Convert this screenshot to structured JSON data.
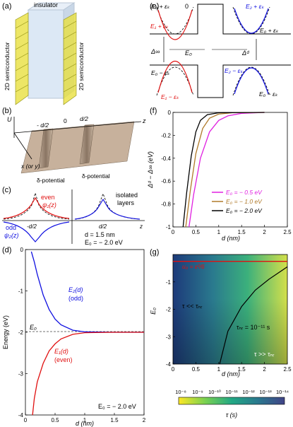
{
  "panels": {
    "a": {
      "label": "(a)",
      "insulator": "insulator",
      "semi_left": "2D semiconductor",
      "semi_right": "2D semiconductor"
    },
    "b": {
      "label": "(b)",
      "u_axis": "U",
      "z_axis": "z",
      "xy_axis": "x (or y)",
      "tick_neg": "- d/2",
      "tick_zero": "0",
      "tick_pos": "d/2",
      "delta1": "δ-potential",
      "delta2": "δ-potential"
    },
    "c": {
      "label": "(c)",
      "even": "even",
      "psi1": "ψ₁(z)",
      "odd": "odd",
      "psi2": "ψ₂(z)",
      "isolated": "isolated",
      "layers": "layers",
      "tick_neg": "-d/2",
      "tick_pos": "d/2",
      "z": "z",
      "param_d": "d = 1.5 nm",
      "param_E": "E₀ = − 2.0 eV"
    },
    "d": {
      "label": "(d)",
      "ylabel": "Energy (eV)",
      "xlabel": "d (nm)",
      "E2": "E₂(d)",
      "E2b": "(odd)",
      "E1": "E₁(d)",
      "E1b": "(even)",
      "E0": "E₀",
      "param": "E₀ = − 2.0 eV",
      "xticks": [
        "0",
        "0.5",
        "1",
        "1.5",
        "2"
      ],
      "yticks": [
        "0",
        "-1",
        "-2",
        "-3",
        "-4"
      ]
    },
    "e": {
      "label": "(e)",
      "E0_plus_ek_l": "E₀ + εₖ",
      "zero": "0",
      "E1_plus": "E₁ + εₖ",
      "E2_plus": "E₂ + εₖ",
      "E0_plus_ek_r": "E₀ + εₖ",
      "delta_inf": "Δ∞",
      "E0": "E₀",
      "delta_d": "Δᵈ",
      "E0_minus_ek_l": "E₀ − εₖ",
      "E1_minus": "E₁ − εₖ",
      "E2_minus": "E₂ − εₖ",
      "E0_minus_ek_r": "E₀ − εₖ"
    },
    "f": {
      "label": "(f)",
      "ylabel": "Δᵈ − Δ∞ (eV)",
      "xlabel": "d (nm)",
      "xticks": [
        "0",
        "0.5",
        "1",
        "1.5",
        "2",
        "2.5"
      ],
      "yticks": [
        "0",
        "-0.2",
        "-0.4",
        "-0.6",
        "-0.8",
        "-1"
      ],
      "legend": [
        {
          "label": "E₀ = − 0.5 eV",
          "color": "#e020e0"
        },
        {
          "label": "E₀ = − 1.0 eV",
          "color": "#b07a2a"
        },
        {
          "label": "E₀ = − 2.0 eV",
          "color": "#000000"
        }
      ]
    },
    "g": {
      "label": "(g)",
      "ylabel": "E₀",
      "xlabel": "d (nm)",
      "xticks": [
        "0",
        "0.5",
        "1",
        "1.5",
        "2",
        "2.5"
      ],
      "yticks": [
        "-1",
        "-2",
        "-3",
        "-4"
      ],
      "redlabel": "u₀ = ε²/6",
      "ann1": "τ << τₙᵣ",
      "ann2": "τₙᵣ = 10⁻¹¹ s",
      "ann3": "τ >> τₙᵣ",
      "cbar_ticks": [
        "10⁻⁸",
        "10⁻⁹",
        "10⁻¹⁰",
        "10⁻¹¹",
        "10⁻¹²",
        "10⁻¹³",
        "10⁻¹⁴"
      ],
      "cbar_label": "τ (s)"
    }
  },
  "chart_data": [
    {
      "type": "line",
      "title": "",
      "xlabel": "d (nm)",
      "ylabel": "Energy (eV)",
      "xlim": [
        0,
        2
      ],
      "ylim": [
        -4,
        0
      ],
      "series": [
        {
          "name": "E₂(d) (odd)",
          "color": "#1010e0",
          "x": [
            0.1,
            0.15,
            0.2,
            0.3,
            0.4,
            0.5,
            0.6,
            0.8,
            1.0,
            1.5,
            2.0
          ],
          "y": [
            -0.05,
            -0.3,
            -0.6,
            -1.1,
            -1.45,
            -1.68,
            -1.82,
            -1.95,
            -1.99,
            -2.0,
            -2.0
          ]
        },
        {
          "name": "E₁(d) (even)",
          "color": "#e01010",
          "x": [
            0.12,
            0.15,
            0.2,
            0.3,
            0.4,
            0.5,
            0.6,
            0.8,
            1.0,
            1.5,
            2.0
          ],
          "y": [
            -4.0,
            -3.6,
            -3.2,
            -2.75,
            -2.45,
            -2.28,
            -2.16,
            -2.05,
            -2.01,
            -2.0,
            -2.0
          ]
        }
      ]
    },
    {
      "type": "line",
      "title": "",
      "xlabel": "d (nm)",
      "ylabel": "Δᵈ − Δ∞ (eV)",
      "xlim": [
        0,
        2.5
      ],
      "ylim": [
        -1,
        0
      ],
      "series": [
        {
          "name": "E₀ = − 0.5 eV",
          "color": "#e020e0",
          "x": [
            0.35,
            0.45,
            0.6,
            0.8,
            1.0,
            1.2,
            1.5,
            2.0
          ],
          "y": [
            -1.0,
            -0.72,
            -0.4,
            -0.17,
            -0.07,
            -0.03,
            -0.008,
            0.0
          ]
        },
        {
          "name": "E₀ = − 1.0 eV",
          "color": "#b07a2a",
          "x": [
            0.28,
            0.38,
            0.5,
            0.65,
            0.8,
            1.0,
            1.3,
            2.0
          ],
          "y": [
            -1.0,
            -0.68,
            -0.36,
            -0.14,
            -0.05,
            -0.015,
            -0.003,
            0.0
          ]
        },
        {
          "name": "E₀ = − 2.0 eV",
          "color": "#000000",
          "x": [
            0.22,
            0.3,
            0.4,
            0.5,
            0.6,
            0.75,
            1.0,
            2.0
          ],
          "y": [
            -1.0,
            -0.7,
            -0.38,
            -0.17,
            -0.07,
            -0.02,
            -0.003,
            0.0
          ]
        }
      ]
    },
    {
      "type": "heatmap",
      "title": "",
      "xlabel": "d (nm)",
      "ylabel": "E₀",
      "xlim": [
        0,
        2.5
      ],
      "ylim": [
        -4,
        0
      ],
      "colorbar_label": "τ (s)",
      "colorbar_ticks": [
        "10⁻⁸",
        "10⁻⁹",
        "10⁻¹⁰",
        "10⁻¹¹",
        "10⁻¹²",
        "10⁻¹³",
        "10⁻¹⁴"
      ],
      "contour": {
        "name": "τₙᵣ = 10⁻¹¹ s",
        "x": [
          1.02,
          1.2,
          1.5,
          1.8,
          2.1,
          2.5
        ],
        "y": [
          -4.0,
          -2.8,
          -1.9,
          -1.3,
          -0.9,
          -0.45
        ]
      },
      "redline_y": -0.25
    }
  ]
}
